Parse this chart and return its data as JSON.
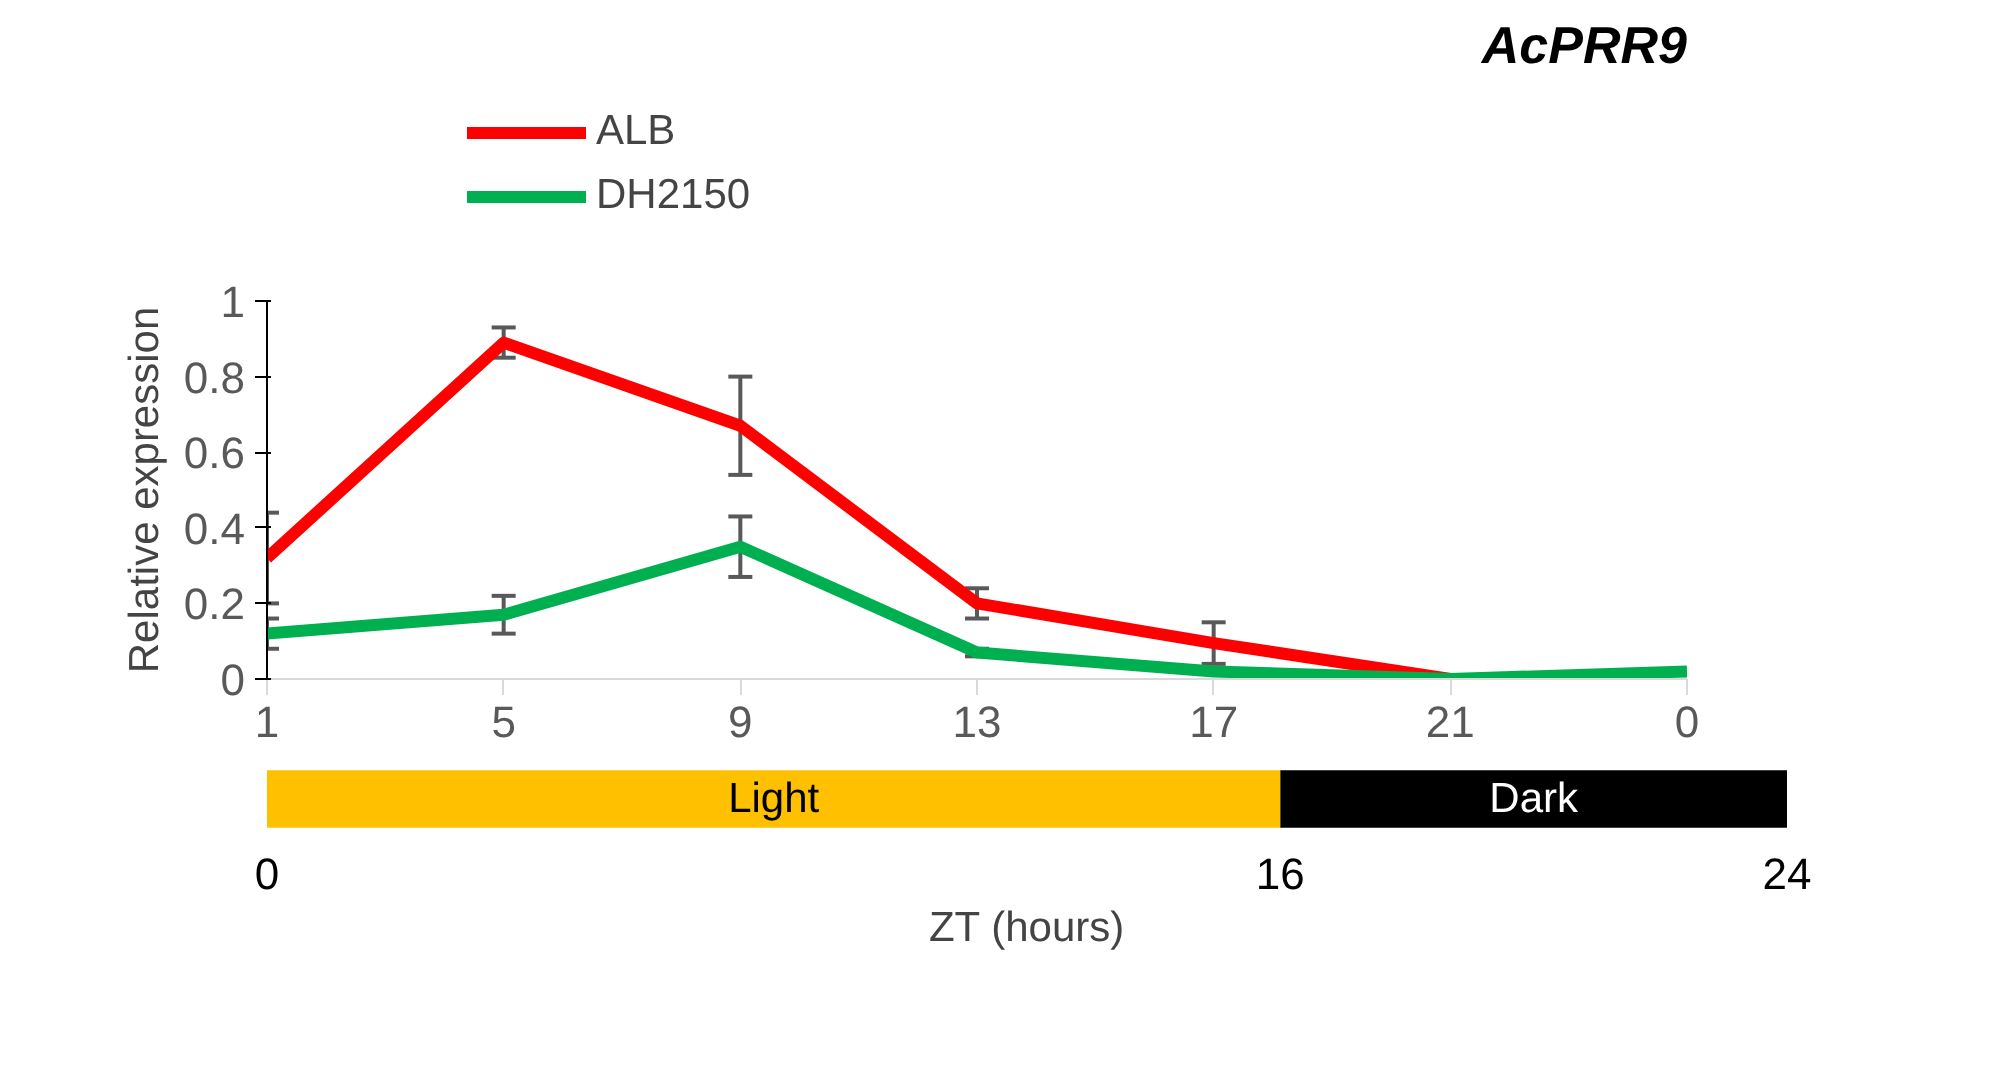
{
  "chart_data": [
    {
      "type": "line",
      "title": "AcPRR9",
      "ylabel": "Relative expression",
      "categories": [
        "1",
        "5",
        "9",
        "13",
        "17",
        "21",
        "0"
      ],
      "series": [
        {
          "name": "ALB",
          "color": "#ff0000",
          "values": [
            0.32,
            0.89,
            0.67,
            0.2,
            0.095,
            0.0,
            null
          ],
          "errors": [
            0.12,
            0.04,
            0.13,
            0.04,
            0.055,
            null,
            null
          ]
        },
        {
          "name": "DH2150",
          "color": "#00b050",
          "values": [
            0.12,
            0.17,
            0.35,
            0.07,
            0.02,
            0.0,
            0.02
          ],
          "errors": [
            0.04,
            0.05,
            0.08,
            0.01,
            null,
            null,
            null
          ]
        }
      ],
      "ylim": [
        0,
        1
      ],
      "yticks": [
        0,
        {
          "value": 0.2,
          "label": "0.2"
        },
        {
          "value": 0.4,
          "label": "0.4"
        },
        {
          "value": 0.6,
          "label": "0.6"
        },
        {
          "value": 0.8,
          "label": "0.8"
        },
        1
      ],
      "legend": "top left",
      "grid": false,
      "marker": "none",
      "line_style": "solid"
    },
    {
      "type": "bar",
      "orientation": "horizontal",
      "stacked": true,
      "categories": [
        null
      ],
      "xlabel": "ZT (hours)",
      "series": [
        {
          "name": "Light",
          "color": "#ffc000",
          "values": [
            16
          ]
        },
        {
          "name": "Dark",
          "color": "#000000",
          "values": [
            8
          ]
        }
      ],
      "xlim": [
        0,
        24
      ],
      "xticks": [
        0,
        16,
        24
      ],
      "tick_labels": "x",
      "grid": false
    }
  ]
}
